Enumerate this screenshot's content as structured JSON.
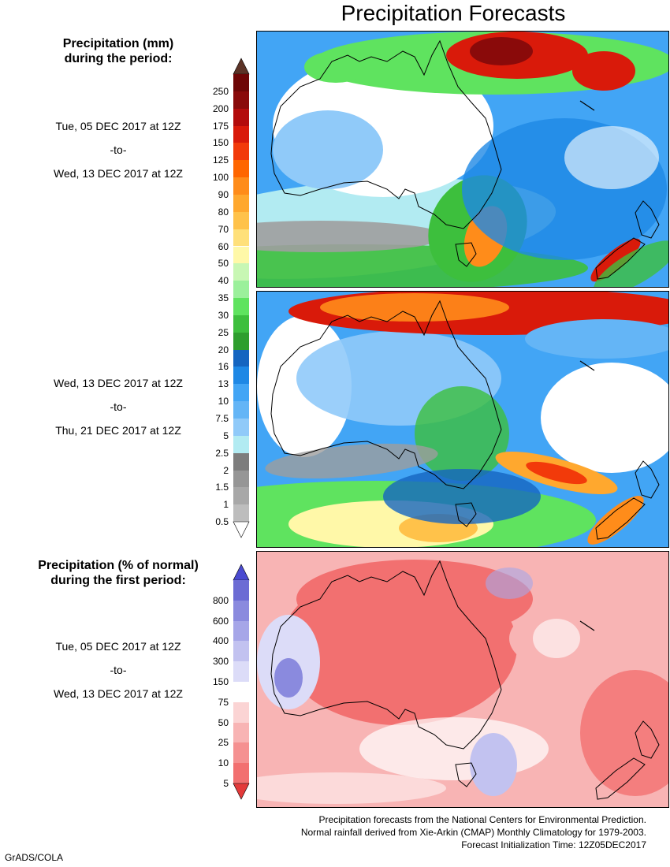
{
  "title": "Precipitation Forecasts",
  "precip_legend": {
    "title_line1": "Precipitation (mm)",
    "title_line2": "during the period:",
    "levels": [
      "0.5",
      "1",
      "1.5",
      "2",
      "2.5",
      "5",
      "7.5",
      "10",
      "13",
      "16",
      "20",
      "25",
      "30",
      "35",
      "40",
      "50",
      "60",
      "70",
      "80",
      "90",
      "100",
      "125",
      "150",
      "175",
      "200",
      "250"
    ],
    "colors": [
      "#bdbdbd",
      "#a8a8a8",
      "#969696",
      "#7d7d7d",
      "#b2ebf2",
      "#90caf9",
      "#64b5f6",
      "#42a5f5",
      "#1e88e5",
      "#1565c0",
      "#2e9e2e",
      "#3dbf3d",
      "#5fe35f",
      "#9bf09b",
      "#c8f7b4",
      "#fff8a8",
      "#ffe07a",
      "#ffc24a",
      "#ffa82e",
      "#ff8c1a",
      "#ff6600",
      "#f23a0a",
      "#d91a0a",
      "#b30c0c",
      "#8a0a0a",
      "#6e0606"
    ],
    "low_cap_color": "#ffffff",
    "high_cap_color": "#5c3327"
  },
  "anomaly_legend": {
    "title_line1": "Precipitation (% of normal)",
    "title_line2": "during the first period:",
    "levels": [
      "5",
      "10",
      "25",
      "50",
      "75",
      "150",
      "300",
      "400",
      "600",
      "800"
    ],
    "colors": [
      "#f27070",
      "#f59191",
      "#f8b4b4",
      "#fbd4d4",
      "#ffffff",
      "#dcdcf8",
      "#c2c2f0",
      "#a6a6e8",
      "#8a8ade",
      "#6c6cd4"
    ],
    "low_cap_color": "#e33a3a",
    "high_cap_color": "#4a4ad0"
  },
  "periods": [
    {
      "start": "Tue, 05 DEC 2017 at 12Z",
      "sep": "-to-",
      "end": "Wed, 13 DEC 2017 at 12Z"
    },
    {
      "start": "Wed, 13 DEC 2017 at 12Z",
      "sep": "-to-",
      "end": "Thu, 21 DEC 2017 at 12Z"
    },
    {
      "start": "Tue, 05 DEC 2017 at 12Z",
      "sep": "-to-",
      "end": "Wed, 13 DEC 2017 at 12Z"
    }
  ],
  "footer": {
    "line1": "Precipitation forecasts from the National Centers for Environmental Prediction.",
    "line2": "Normal rainfall derived from Xie-Arkin (CMAP) Monthly Climatology for 1979-2003.",
    "line3": "Forecast Initialization Time: 12Z05DEC2017"
  },
  "credit": "GrADS/COLA"
}
